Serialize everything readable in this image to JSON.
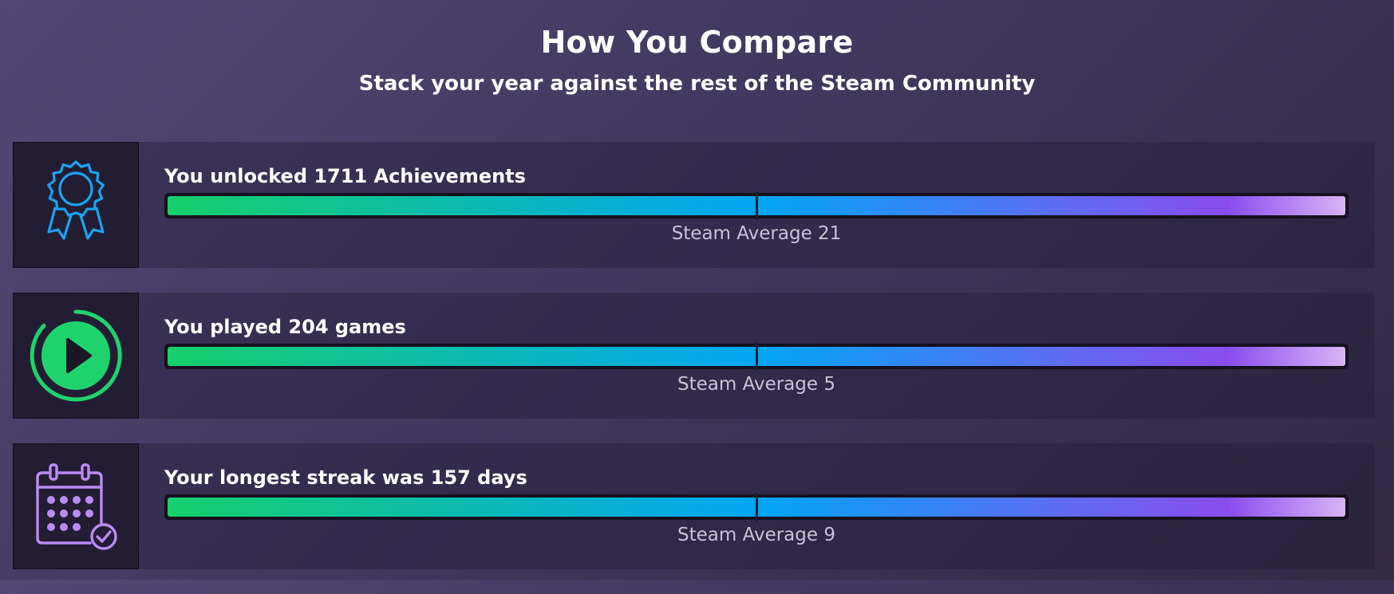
{
  "header": {
    "title": "How You Compare",
    "subtitle": "Stack your year against the rest of the Steam Community"
  },
  "stats": [
    {
      "icon": "ribbon-award-icon",
      "icon_color": "#1aa3f0",
      "label": "You unlocked 1711 Achievements",
      "fill_fraction": 1.0,
      "average_marker_fraction": 0.5,
      "average_label": "Steam Average 21"
    },
    {
      "icon": "play-circle-icon",
      "icon_color": "#1ed36e",
      "label": "You played 204 games",
      "fill_fraction": 1.0,
      "average_marker_fraction": 0.5,
      "average_label": "Steam Average 5"
    },
    {
      "icon": "calendar-check-icon",
      "icon_color": "#b98cf2",
      "label": "Your longest streak was 157 days",
      "fill_fraction": 1.0,
      "average_marker_fraction": 0.5,
      "average_label": "Steam Average 9"
    }
  ]
}
